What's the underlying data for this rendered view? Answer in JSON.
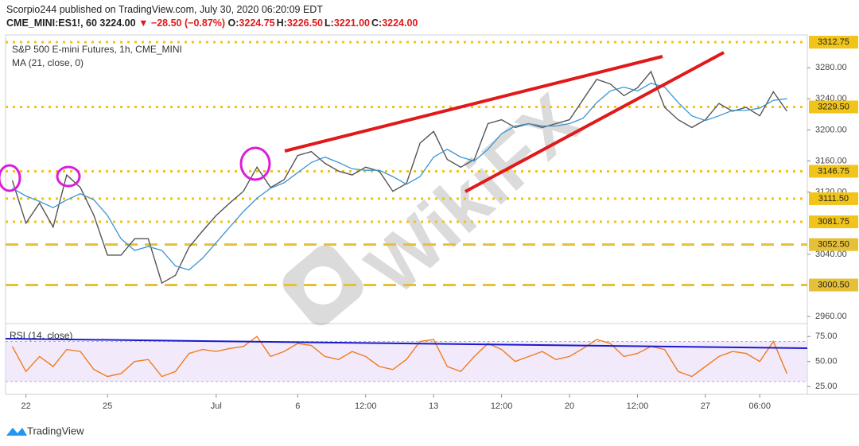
{
  "header": {
    "published": "Scorpio244 published on TradingView.com, July 30, 2020 06:20:09 EDT",
    "symbol": "CME_MINI:ES1!, 60",
    "last": "3224.00",
    "change": "▼ −28.50 (−0.87%)",
    "ohlc": [
      {
        "key": "O:",
        "value": "3224.75"
      },
      {
        "key": "H:",
        "value": "3226.50"
      },
      {
        "key": "L:",
        "value": "3221.00"
      },
      {
        "key": "C:",
        "value": "3224.00"
      }
    ]
  },
  "footer": {
    "brand": "TradingView"
  },
  "chart_data": [
    {
      "type": "line",
      "title": "S&P 500 E-mini Futures, 1h, CME_MINI",
      "watermark": "WikiFX",
      "categories": [
        null,
        "22",
        null,
        null,
        null,
        null,
        null,
        "25",
        null,
        null,
        null,
        null,
        null,
        null,
        null,
        "Jul",
        null,
        null,
        null,
        null,
        null,
        "6",
        null,
        null,
        null,
        null,
        "12:00",
        null,
        null,
        null,
        null,
        "13",
        null,
        null,
        null,
        null,
        "12:00",
        null,
        null,
        null,
        null,
        "20",
        null,
        null,
        null,
        null,
        "12:00",
        null,
        null,
        null,
        null,
        "27",
        null,
        null,
        null,
        "06:00",
        null,
        null,
        null
      ],
      "series": [
        {
          "color": "#555555",
          "values": [
            3135,
            3080,
            3106,
            3075,
            3142,
            3126,
            3090,
            3039,
            3039,
            3060,
            3060,
            3003,
            3013,
            3049,
            3070,
            3090,
            3106,
            3121,
            3152,
            3126,
            3136,
            3167,
            3172,
            3157,
            3147,
            3142,
            3152,
            3147,
            3121,
            3131,
            3183,
            3198,
            3162,
            3152,
            3162,
            3208,
            3213,
            3203,
            3208,
            3203,
            3208,
            3213,
            3239,
            3265,
            3259,
            3244,
            3254,
            3275,
            3229,
            3213,
            3203,
            3213,
            3234,
            3224,
            3229,
            3218,
            3249,
            3224,
            null
          ]
        },
        {
          "name": "MA (21, close, 0)",
          "color": "#3b95d4",
          "values": [
            3125,
            3115,
            3108,
            3100,
            3110,
            3118,
            3110,
            3090,
            3060,
            3045,
            3050,
            3045,
            3025,
            3020,
            3035,
            3055,
            3075,
            3095,
            3112,
            3125,
            3132,
            3145,
            3158,
            3165,
            3158,
            3150,
            3148,
            3148,
            3140,
            3130,
            3140,
            3165,
            3175,
            3165,
            3160,
            3175,
            3195,
            3205,
            3208,
            3205,
            3205,
            3208,
            3215,
            3235,
            3250,
            3255,
            3250,
            3260,
            3255,
            3235,
            3218,
            3212,
            3218,
            3225,
            3225,
            3228,
            3238,
            3240,
            null
          ]
        }
      ],
      "ylim": [
        2953,
        3322
      ],
      "yticks": [
        {
          "value": 3280,
          "label": "3280.00"
        },
        {
          "value": 3240,
          "label": "3240.00"
        },
        {
          "value": 3200,
          "label": "3200.00"
        },
        {
          "value": 3160,
          "label": "3160.00"
        },
        {
          "value": 3120,
          "label": "3120.00"
        },
        {
          "value": 3040,
          "label": "3040.00"
        },
        {
          "value": 2960,
          "label": "2960.00"
        }
      ],
      "levels": [
        {
          "value": 3312.75,
          "style": "dotted",
          "color": "#f0c419"
        },
        {
          "value": 3229.5,
          "label": "3229.50",
          "style": "dotted",
          "color": "#f0c419"
        },
        {
          "value": 3146.75,
          "style": "dotted",
          "color": "#f0c419"
        },
        {
          "value": 3111.5,
          "label": "3111.50",
          "style": "dotted",
          "color": "#f0c419"
        },
        {
          "value": 3081.75,
          "style": "dotted",
          "color": "#f0c419"
        },
        {
          "value": 3052.5,
          "label": "3052.50",
          "style": "dashed",
          "color": "#e6c036"
        },
        {
          "value": 3000.5,
          "label": "3000.50",
          "style": "dashed",
          "color": "#e6c036"
        }
      ]
    },
    {
      "type": "line",
      "title": "RSI (14, close)",
      "series": [
        {
          "color": "#f07c1e",
          "values": [
            65,
            40,
            55,
            45,
            62,
            60,
            42,
            35,
            38,
            50,
            52,
            35,
            40,
            58,
            62,
            60,
            63,
            65,
            75,
            55,
            60,
            68,
            66,
            55,
            52,
            60,
            55,
            45,
            42,
            52,
            70,
            72,
            45,
            40,
            55,
            68,
            62,
            50,
            55,
            60,
            52,
            55,
            63,
            72,
            68,
            55,
            58,
            65,
            62,
            40,
            35,
            45,
            55,
            60,
            58,
            50,
            70,
            38,
            null
          ]
        }
      ],
      "ylim": [
        18,
        85.5
      ],
      "yticks": [
        {
          "value": 75,
          "label": "75.00"
        },
        {
          "value": 50,
          "label": "50.00"
        },
        {
          "value": 25,
          "label": "25.00"
        }
      ],
      "band": [
        30,
        70
      ],
      "band_color": "#e9dcf7"
    }
  ]
}
